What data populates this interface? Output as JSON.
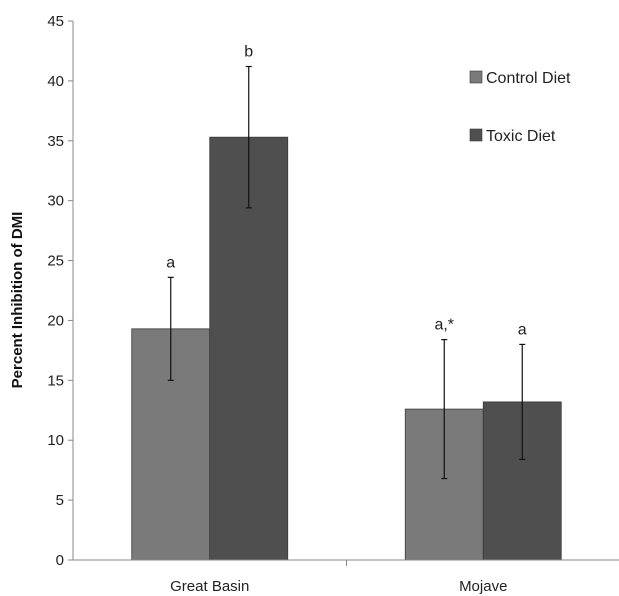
{
  "chart_data": {
    "type": "bar",
    "title": "",
    "xlabel": "",
    "ylabel": "Percent Inhibition of DMI",
    "ylim": [
      0,
      45
    ],
    "yticks": [
      0,
      5,
      10,
      15,
      20,
      25,
      30,
      35,
      40,
      45
    ],
    "grid": false,
    "legend_position": "top-right",
    "categories": [
      "Great Basin",
      "Mojave"
    ],
    "series": [
      {
        "name": "Control Diet",
        "color": "#7a7a7a",
        "values": [
          19.3,
          12.6
        ],
        "error_low": [
          15.0,
          6.8
        ],
        "error_high": [
          23.6,
          18.4
        ],
        "annotations": [
          "a",
          "a,*"
        ]
      },
      {
        "name": "Toxic Diet",
        "color": "#4f4f4f",
        "values": [
          35.3,
          13.2
        ],
        "error_low": [
          29.4,
          8.4
        ],
        "error_high": [
          41.2,
          18.0
        ],
        "annotations": [
          "b",
          "a"
        ]
      }
    ]
  }
}
